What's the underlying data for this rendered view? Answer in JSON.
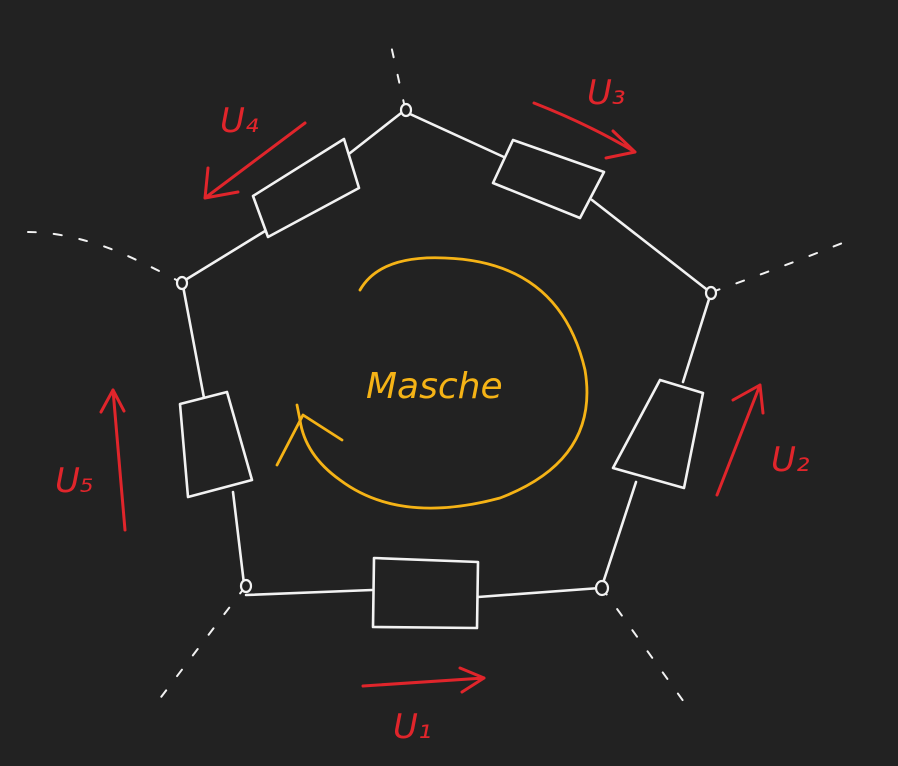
{
  "diagram": {
    "center_label": "Masche",
    "voltages": [
      {
        "id": "u1",
        "label": "U₁"
      },
      {
        "id": "u2",
        "label": "U₂"
      },
      {
        "id": "u3",
        "label": "U₃"
      },
      {
        "id": "u4",
        "label": "U₄"
      },
      {
        "id": "u5",
        "label": "U₅"
      }
    ],
    "colors": {
      "background": "#222222",
      "wire": "#f2f2f2",
      "voltage_arrow": "#e0252b",
      "mesh_arrow": "#f5b316"
    }
  }
}
